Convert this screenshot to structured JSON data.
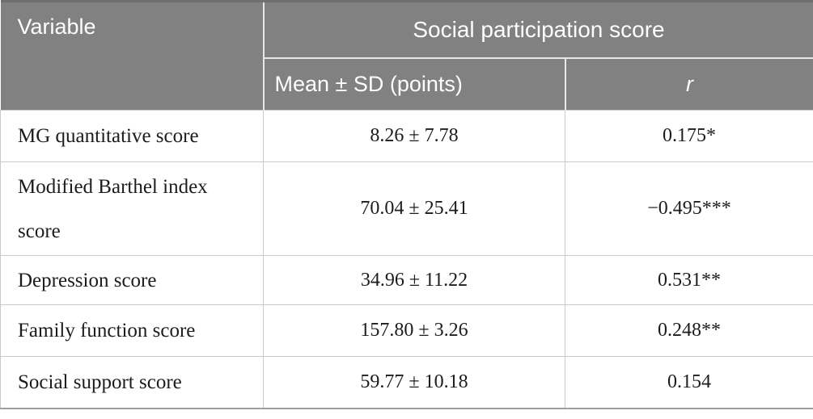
{
  "theme": {
    "header_bg": "#818181",
    "header_text": "#fdfdfd",
    "body_text": "#1c1c1c",
    "grid_line": "#c9c9c9",
    "header_divider": "#e8e8e8",
    "top_border": "#6f6f6f",
    "bottom_border": "#9e9e9e"
  },
  "table": {
    "header": {
      "variable": "Variable",
      "group": "Social participation score",
      "col_mean": "Mean ± SD (points)",
      "col_r": "r"
    },
    "rows": [
      {
        "variable": "MG quantitative score",
        "mean_sd": "8.26 ± 7.78",
        "r": "0.175*"
      },
      {
        "variable": "Modified Barthel index score",
        "mean_sd": "70.04 ± 25.41",
        "r": "−0.495***"
      },
      {
        "variable": "Depression score",
        "mean_sd": "34.96 ± 11.22",
        "r": "0.531**"
      },
      {
        "variable": "Family function score",
        "mean_sd": "157.80 ± 3.26",
        "r": "0.248**"
      },
      {
        "variable": "Social support score",
        "mean_sd": "59.77 ± 10.18",
        "r": "0.154"
      }
    ]
  }
}
